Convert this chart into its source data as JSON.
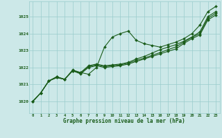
{
  "background_color": "#cce8e8",
  "grid_color": "#99cccc",
  "line_color": "#1a5c1a",
  "marker_color": "#1a5c1a",
  "title": "Graphe pression niveau de la mer (hPa)",
  "xlim": [
    -0.5,
    23.5
  ],
  "ylim": [
    1019.3,
    1025.9
  ],
  "yticks": [
    1020,
    1021,
    1022,
    1023,
    1024,
    1025
  ],
  "xticks": [
    0,
    1,
    2,
    3,
    4,
    5,
    6,
    7,
    8,
    9,
    10,
    11,
    12,
    13,
    14,
    15,
    16,
    17,
    18,
    19,
    20,
    21,
    22,
    23
  ],
  "series": [
    [
      1020.0,
      1020.5,
      1021.2,
      1021.4,
      1021.3,
      1021.8,
      1021.7,
      1021.6,
      1022.0,
      1023.2,
      1023.8,
      1024.0,
      1024.15,
      1023.6,
      1023.4,
      1023.3,
      1023.2,
      1023.35,
      1023.5,
      1023.7,
      1024.0,
      1024.5,
      1025.3,
      1025.6
    ],
    [
      1020.0,
      1020.5,
      1021.2,
      1021.4,
      1021.3,
      1021.85,
      1021.7,
      1022.1,
      1022.2,
      1022.1,
      1022.15,
      1022.2,
      1022.3,
      1022.5,
      1022.65,
      1022.85,
      1023.05,
      1023.2,
      1023.35,
      1023.55,
      1023.8,
      1024.1,
      1025.0,
      1025.3
    ],
    [
      1020.0,
      1020.5,
      1021.2,
      1021.45,
      1021.3,
      1021.82,
      1021.65,
      1022.05,
      1022.15,
      1022.05,
      1022.1,
      1022.15,
      1022.25,
      1022.42,
      1022.55,
      1022.72,
      1022.88,
      1023.05,
      1023.22,
      1023.5,
      1023.78,
      1024.0,
      1024.9,
      1025.2
    ],
    [
      1020.0,
      1020.5,
      1021.2,
      1021.45,
      1021.3,
      1021.8,
      1021.62,
      1022.0,
      1022.1,
      1022.0,
      1022.05,
      1022.1,
      1022.2,
      1022.35,
      1022.5,
      1022.65,
      1022.8,
      1022.95,
      1023.1,
      1023.42,
      1023.7,
      1023.92,
      1024.8,
      1025.1
    ]
  ]
}
